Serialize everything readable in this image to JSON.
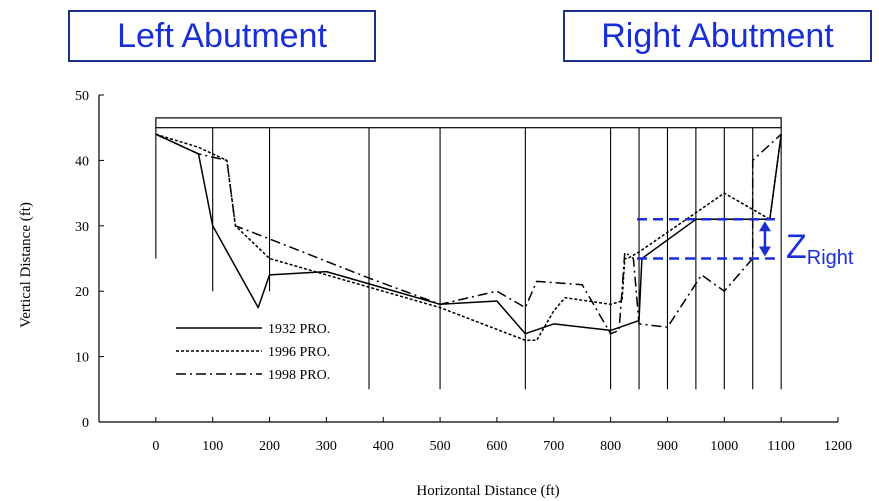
{
  "labels": {
    "left_abutment": "Left Abutment",
    "right_abutment": "Right Abutment",
    "z_main": "Z",
    "z_sub": "Right"
  },
  "colors": {
    "annotation": "#1a2ed6",
    "box_border": "#1f2f8f",
    "line": "#000000"
  },
  "chart_data": {
    "type": "line",
    "xlabel": "Horizontal Distance (ft)",
    "ylabel": "Vertical Distance (ft)",
    "xlim": [
      -100,
      1200
    ],
    "ylim": [
      0,
      50
    ],
    "xticks": [
      0,
      100,
      200,
      300,
      400,
      500,
      600,
      700,
      800,
      900,
      1000,
      1100,
      1200
    ],
    "yticks": [
      0,
      10,
      20,
      30,
      40,
      50
    ],
    "legend_position": "bottom-left",
    "bridge_deck": {
      "x_start": 0,
      "x_end": 1100,
      "y_top": 46.5,
      "y_bottom": 45
    },
    "piers": [
      {
        "x": 0,
        "y_bottom": 25
      },
      {
        "x": 100,
        "y_bottom": 20
      },
      {
        "x": 200,
        "y_bottom": 20
      },
      {
        "x": 375,
        "y_bottom": 5
      },
      {
        "x": 500,
        "y_bottom": 5
      },
      {
        "x": 650,
        "y_bottom": 5
      },
      {
        "x": 800,
        "y_bottom": 5
      },
      {
        "x": 850,
        "y_bottom": 5
      },
      {
        "x": 900,
        "y_bottom": 5
      },
      {
        "x": 950,
        "y_bottom": 5
      },
      {
        "x": 1000,
        "y_bottom": 5
      },
      {
        "x": 1050,
        "y_bottom": 5
      },
      {
        "x": 1100,
        "y_bottom": 5
      }
    ],
    "series": [
      {
        "name": "1932 PRO.",
        "style": "solid",
        "x": [
          0,
          75,
          100,
          180,
          200,
          300,
          500,
          600,
          650,
          700,
          800,
          850,
          855,
          950,
          1080,
          1100
        ],
        "y": [
          44,
          41,
          30,
          17.5,
          22.5,
          23,
          18,
          18.5,
          13.5,
          15,
          14,
          15.5,
          25,
          31,
          31,
          44
        ]
      },
      {
        "name": "1996 PRO.",
        "style": "dotted",
        "x": [
          0,
          75,
          125,
          140,
          200,
          500,
          650,
          670,
          700,
          720,
          800,
          820,
          825,
          830,
          850,
          1000,
          1080,
          1100
        ],
        "y": [
          44,
          42,
          40,
          30,
          25,
          17.5,
          12.5,
          12.5,
          17,
          19,
          18,
          18.5,
          25,
          25,
          26,
          35,
          31,
          44
        ]
      },
      {
        "name": "1998 PRO.",
        "style": "dashdot",
        "x": [
          0,
          75,
          125,
          140,
          200,
          375,
          500,
          600,
          650,
          670,
          750,
          800,
          815,
          825,
          840,
          850,
          900,
          960,
          1000,
          1050,
          1050,
          1100
        ],
        "y": [
          44,
          41,
          40,
          30,
          28,
          22,
          18,
          20,
          17.5,
          21.5,
          21,
          13.5,
          14,
          26,
          25,
          15,
          14.5,
          22.5,
          20,
          25,
          40,
          44
        ]
      }
    ],
    "annotation": {
      "z_right": {
        "x_start": 850,
        "x_end": 1075,
        "upper_y": 31,
        "lower_y": 25
      }
    }
  }
}
